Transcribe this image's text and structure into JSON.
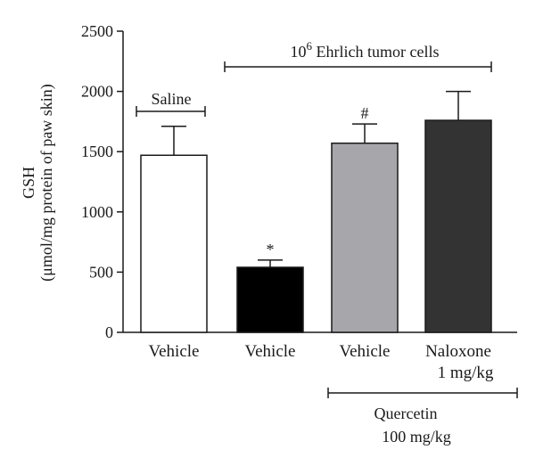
{
  "chart_data": {
    "type": "bar",
    "ylabel_line1": "GSH",
    "ylabel_line2": "(μmol/mg protein of paw skin)",
    "ylim": [
      0,
      2500
    ],
    "yticks": [
      0,
      500,
      1000,
      1500,
      2000,
      2500
    ],
    "categories": [
      "Vehicle",
      "Vehicle",
      "Vehicle",
      "Naloxone"
    ],
    "category_sublabels": [
      "",
      "",
      "",
      "1 mg/kg"
    ],
    "values": [
      1470,
      540,
      1570,
      1760
    ],
    "errors": [
      240,
      60,
      160,
      240
    ],
    "bar_colors": [
      "#ffffff",
      "#000000",
      "#a6a6ab",
      "#333333"
    ],
    "significance_markers": [
      "",
      "*",
      "#",
      ""
    ],
    "group_annotations": {
      "saline": "Saline",
      "tumor_prefix": "10",
      "tumor_exponent": "6",
      "tumor_suffix": " Ehrlich tumor cells",
      "quercetin_line1": "Quercetin",
      "quercetin_line2": "100 mg/kg"
    },
    "grid": false,
    "legend": "none"
  }
}
